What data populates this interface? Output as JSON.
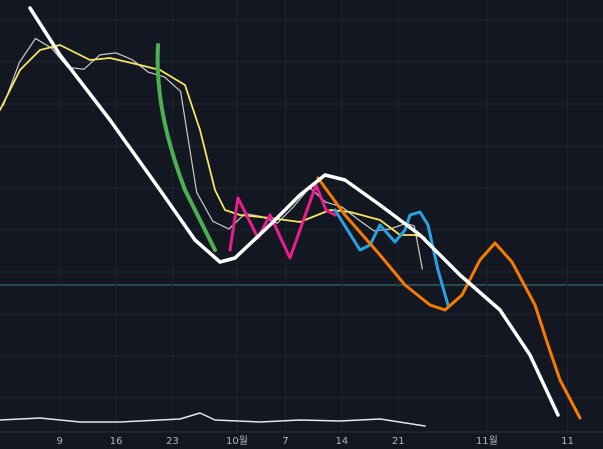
{
  "chart_data": {
    "type": "line",
    "x": [
      2,
      4,
      6,
      8,
      10,
      12,
      14,
      16,
      18,
      20,
      22,
      24,
      26,
      28,
      30,
      32,
      34,
      36,
      38,
      40,
      42,
      44,
      46,
      48,
      50,
      52,
      53,
      54
    ],
    "series": [
      {
        "color": "#c9c9c9",
        "values": [
          339,
          384,
          409,
          399,
          379,
          377,
          392,
          394,
          387,
          374,
          369,
          354,
          249,
          219,
          211,
          227,
          224,
          217,
          234,
          254,
          239,
          234,
          221,
          209,
          211,
          217,
          214,
          169
        ]
      }
    ],
    "xlim": [
      1.6,
      76.4
    ],
    "ylim": [
      0,
      449
    ],
    "xticks": [
      9,
      16,
      23,
      {
        "value": 31,
        "label": "10월"
      },
      {
        "value": 37,
        "label": "7"
      },
      {
        "value": 44,
        "label": "14"
      },
      {
        "value": 51,
        "label": "21"
      },
      {
        "value": 62,
        "label": "11월"
      },
      {
        "value": 72,
        "label": "11"
      }
    ],
    "grid": true
  }
}
